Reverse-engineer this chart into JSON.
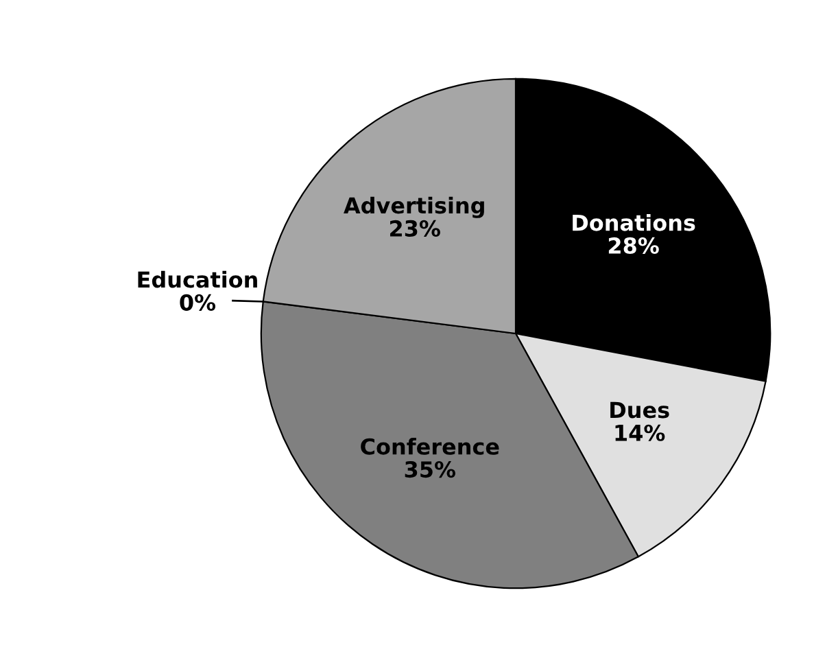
{
  "chart_data": {
    "type": "pie",
    "categories": [
      "Donations",
      "Dues",
      "Conference",
      "Education",
      "Advertising"
    ],
    "values": [
      28,
      14,
      35,
      0,
      23
    ],
    "colors": [
      "#000000",
      "#e0e0e0",
      "#808080",
      "#c0c0c0",
      "#a6a6a6"
    ],
    "value_labels": [
      "28%",
      "14%",
      "35%",
      "0%",
      "23%"
    ],
    "legend": false
  }
}
